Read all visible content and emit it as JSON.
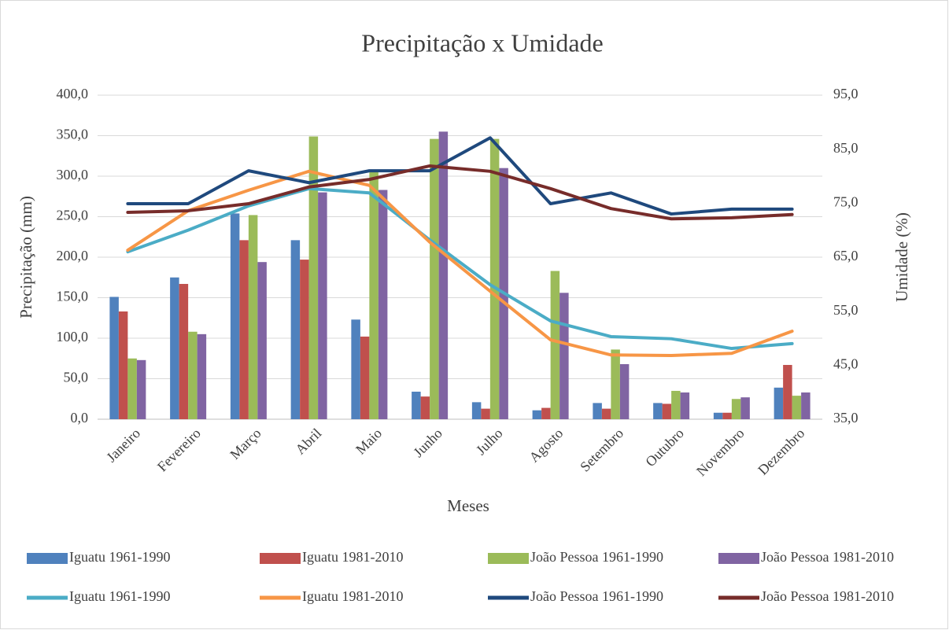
{
  "chart_data": {
    "type": "combo",
    "title": "Precipitação x Umidade",
    "x_label": "Meses",
    "y_label": "Precipitação (mm)",
    "y2_label": "Umidade (%)",
    "categories": [
      "Janeiro",
      "Fevereiro",
      "Março",
      "Abril",
      "Maio",
      "Junho",
      "Julho",
      "Agosto",
      "Setembro",
      "Outubro",
      "Novembro",
      "Dezembro"
    ],
    "ylim": [
      0,
      400
    ],
    "yticks": [
      {
        "value": 0,
        "label": "0,0"
      },
      {
        "value": 50,
        "label": "50,0"
      },
      {
        "value": 100,
        "label": "100,0"
      },
      {
        "value": 150,
        "label": "150,0"
      },
      {
        "value": 200,
        "label": "200,0"
      },
      {
        "value": 250,
        "label": "250,0"
      },
      {
        "value": 300,
        "label": "300,0"
      },
      {
        "value": 350,
        "label": "350,0"
      },
      {
        "value": 400,
        "label": "400,0"
      }
    ],
    "y2lim": [
      35,
      95
    ],
    "y2ticks": [
      {
        "value": 35,
        "label": "35,0"
      },
      {
        "value": 45,
        "label": "45,0"
      },
      {
        "value": 55,
        "label": "55,0"
      },
      {
        "value": 65,
        "label": "65,0"
      },
      {
        "value": 75,
        "label": "75,0"
      },
      {
        "value": 85,
        "label": "85,0"
      },
      {
        "value": 95,
        "label": "95,0"
      }
    ],
    "grid": true,
    "legend": "bottom",
    "series": [
      {
        "name": "Iguatu 1961-1990",
        "type": "bar",
        "color": "#4f81bd",
        "values": [
          151,
          175,
          254,
          221,
          123,
          34,
          21,
          11,
          20,
          20,
          8,
          39
        ]
      },
      {
        "name": "Iguatu 1981-2010",
        "type": "bar",
        "color": "#c0504d",
        "values": [
          133,
          167,
          221,
          197,
          102,
          28,
          13,
          14,
          13,
          19,
          8,
          67
        ]
      },
      {
        "name": "João Pessoa 1961-1990",
        "type": "bar",
        "color": "#9bbb59",
        "values": [
          75,
          108,
          252,
          349,
          306,
          346,
          346,
          183,
          86,
          35,
          25,
          29
        ]
      },
      {
        "name": "João Pessoa 1981-2010",
        "type": "bar",
        "color": "#8064a2",
        "values": [
          73,
          105,
          194,
          280,
          283,
          355,
          310,
          156,
          68,
          33,
          27,
          33
        ]
      },
      {
        "name": "Iguatu 1961-1990",
        "type": "line",
        "axis": "y2",
        "color": "#4bacc6",
        "values": [
          66.0,
          70.0,
          74.5,
          77.7,
          76.9,
          68.2,
          59.9,
          53.2,
          50.3,
          49.9,
          48.1,
          49.0
        ]
      },
      {
        "name": "Iguatu 1981-2010",
        "type": "line",
        "axis": "y2",
        "color": "#f79646",
        "values": [
          66.3,
          73.6,
          77.4,
          80.9,
          78.3,
          67.8,
          58.7,
          49.7,
          46.9,
          46.8,
          47.2,
          51.3
        ]
      },
      {
        "name": "João Pessoa 1961-1990",
        "type": "line",
        "axis": "y2",
        "color": "#1f497d",
        "values": [
          74.9,
          74.9,
          81.0,
          78.8,
          81.0,
          81.0,
          87.1,
          74.9,
          76.9,
          73.0,
          73.9,
          73.9
        ]
      },
      {
        "name": "João Pessoa 1981-2010",
        "type": "line",
        "axis": "y2",
        "color": "#772c2a",
        "values": [
          73.3,
          73.6,
          74.9,
          78.0,
          79.4,
          81.9,
          80.9,
          77.7,
          74.0,
          72.1,
          72.3,
          72.9
        ]
      }
    ]
  }
}
